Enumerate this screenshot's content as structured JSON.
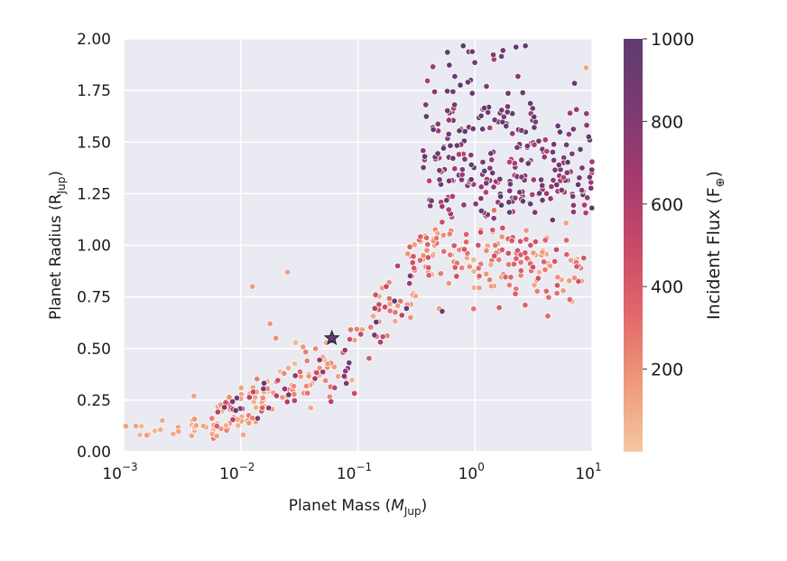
{
  "chart_data": {
    "type": "scatter",
    "xscale": "log",
    "xlabel_main": "Planet Mass (",
    "xlabel_var": "M",
    "xlabel_sub": "Jup",
    "xlabel_close": ")",
    "ylabel_main": "Planet Radius (R",
    "ylabel_sub": "Jup",
    "ylabel_close": ")",
    "xlim": [
      0.001,
      10
    ],
    "ylim": [
      0.0,
      2.0
    ],
    "x_ticks": [
      {
        "base": "10",
        "exp": "−3"
      },
      {
        "base": "10",
        "exp": "−2"
      },
      {
        "base": "10",
        "exp": "−1"
      },
      {
        "base": "10",
        "exp": "0"
      },
      {
        "base": "10",
        "exp": "1"
      }
    ],
    "y_ticks": [
      "0.00",
      "0.25",
      "0.50",
      "0.75",
      "1.00",
      "1.25",
      "1.50",
      "1.75",
      "2.00"
    ],
    "colorbar": {
      "label_main": "Incident Flux (F",
      "label_sub": "⊕",
      "label_close": ")",
      "range": [
        0,
        1000
      ],
      "ticks": [
        "200",
        "400",
        "600",
        "800",
        "1000"
      ],
      "colormap": [
        "#f4c6a0",
        "#ee9a7b",
        "#e1676a",
        "#c64968",
        "#a33a6e",
        "#7b3a72",
        "#5e3c6f"
      ]
    },
    "highlight": {
      "mass": 0.06,
      "radius": 0.55,
      "flux": 1000,
      "marker": "star"
    },
    "grid": true,
    "background": "#eaeaf2",
    "seed": 20240611
  }
}
